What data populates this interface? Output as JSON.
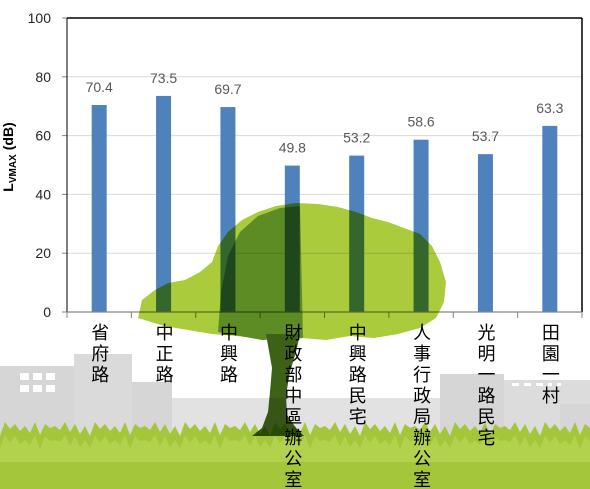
{
  "chart_data": {
    "type": "bar",
    "categories": [
      "省府路",
      "中正路",
      "中興路",
      "財政部中區辦公室",
      "中興路民宅",
      "人事行政局辦公室",
      "光明一路民宅",
      "田園一村"
    ],
    "values": [
      70.4,
      73.5,
      69.7,
      49.8,
      53.2,
      58.6,
      53.7,
      63.3
    ],
    "xlabel": "",
    "ylabel": {
      "main": "L",
      "sub": "VMAX",
      "unit": "(dB)"
    },
    "ylim": [
      0,
      100
    ],
    "yticks": [
      0,
      20,
      40,
      60,
      80,
      100
    ],
    "grid": true,
    "data_labels": true,
    "colors": {
      "bar": "#4F81BD",
      "data_label": "#595959",
      "grid": "#D9D9D9",
      "frame": "#000000",
      "axis": "#868686"
    }
  },
  "background": {
    "colors": {
      "canopy": "#AACB3C",
      "canopy_shade": "#5E8C24",
      "trunk": "#3E6118",
      "grass": "#A3C63A",
      "buildings": "#D6D6D6"
    }
  }
}
